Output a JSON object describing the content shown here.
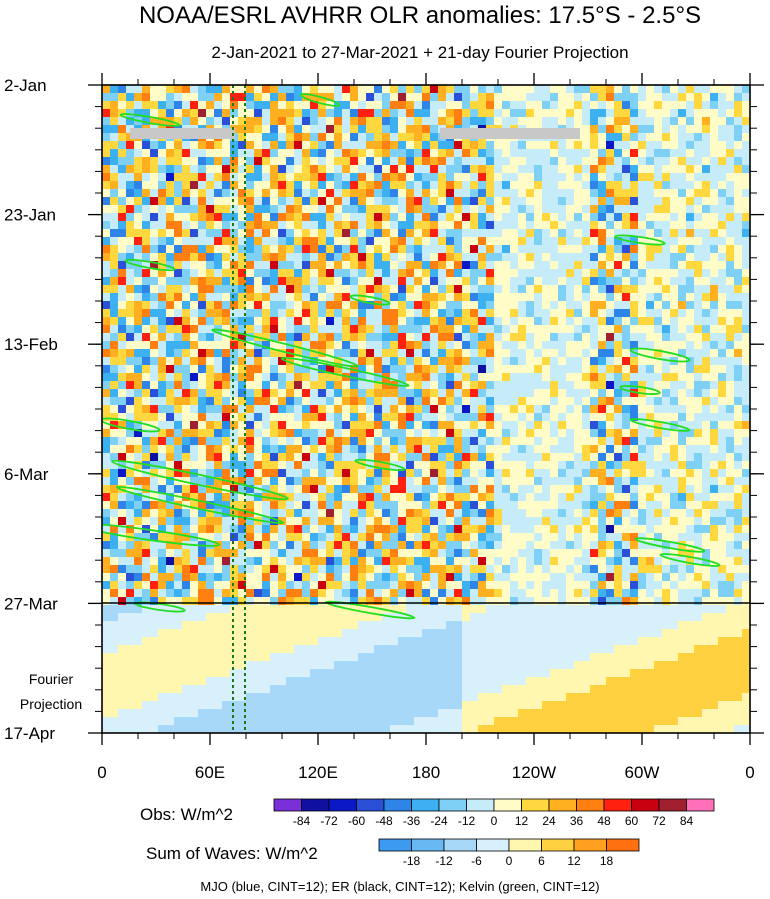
{
  "chart_data": {
    "type": "heatmap",
    "title": "NOAA/ESRL AVHRR OLR anomalies: 17.5°S - 2.5°S",
    "subtitle": "2-Jan-2021 to 27-Mar-2021 + 21-day Fourier Projection",
    "y_tick_labels": [
      "2-Jan",
      "23-Jan",
      "13-Feb",
      "6-Mar",
      "27-Mar",
      "17-Apr"
    ],
    "x_tick_labels": [
      "0",
      "60E",
      "120E",
      "180",
      "120W",
      "60W",
      "0"
    ],
    "x_range": [
      "0",
      "0"
    ],
    "y_range": [
      "2-Jan-2021",
      "17-Apr-2021"
    ],
    "observation_end": "27-Mar",
    "projection_label": [
      "Fourier",
      "Projection"
    ],
    "obs_colorbar": {
      "label": "Obs: W/m^2",
      "levels": [
        -84,
        -72,
        -60,
        -48,
        -36,
        -24,
        -12,
        0,
        12,
        24,
        36,
        48,
        60,
        72,
        84
      ],
      "colors": [
        "#7b2fd8",
        "#1010a0",
        "#0a18c8",
        "#2a50d8",
        "#2f84e8",
        "#3cb0f0",
        "#7ed0f4",
        "#c6ecfa",
        "#fffcc8",
        "#ffd840",
        "#ffb020",
        "#ff8010",
        "#ff2010",
        "#c80010",
        "#a02030",
        "#ff70b8"
      ]
    },
    "waves_colorbar": {
      "label": "Sum of Waves: W/m^2",
      "levels": [
        -18,
        -12,
        -6,
        0,
        6,
        12,
        18
      ],
      "colors": [
        "#3c9af0",
        "#68b8f4",
        "#a8d8f8",
        "#d8f0fc",
        "#fff6b0",
        "#ffd040",
        "#ffa020",
        "#ff7010"
      ]
    },
    "footer": "MJO (blue, CINT=12); ER (black, CINT=12); Kelvin (green, CINT=12)",
    "contours": [
      {
        "name": "MJO",
        "color": "#1a2ad0",
        "cint": 12
      },
      {
        "name": "ER",
        "color": "#000000",
        "cint": 12
      },
      {
        "name": "Kelvin",
        "color": "#22dd22",
        "cint": 12
      }
    ],
    "grid": false
  }
}
